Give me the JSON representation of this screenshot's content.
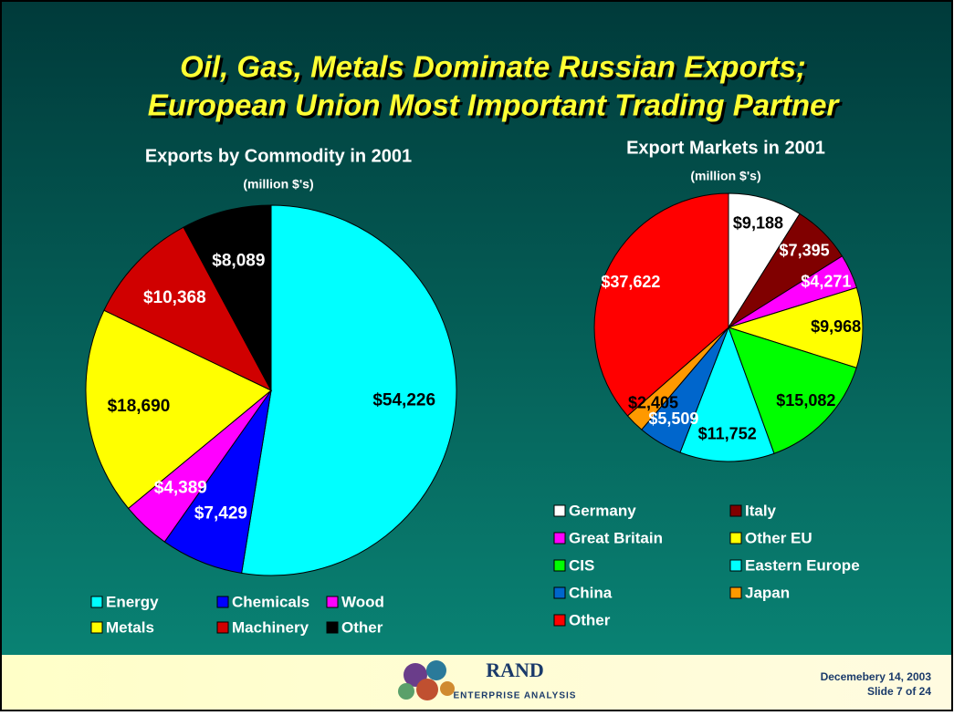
{
  "title": [
    "Oil, Gas, Metals Dominate Russian Exports;",
    "European Union Most Important Trading Partner"
  ],
  "chart_data": [
    {
      "type": "pie",
      "title": "Exports by Commodity in 2001",
      "subtitle": "(million $'s)",
      "categories": [
        "Energy",
        "Chemicals",
        "Wood",
        "Metals",
        "Machinery",
        "Other"
      ],
      "values": [
        54226,
        7429,
        4389,
        18690,
        10368,
        8089
      ],
      "value_labels": [
        "$54,226",
        "$7,429",
        "$4,389",
        "$18,690",
        "$10,368",
        "$8,089"
      ],
      "colors": [
        "#00ffff",
        "#0000ff",
        "#ff00ff",
        "#ffff00",
        "#d00000",
        "#000000"
      ]
    },
    {
      "type": "pie",
      "title": "Export Markets in 2001",
      "subtitle": "(million $'s)",
      "categories": [
        "Germany",
        "Italy",
        "Great Britain",
        "Other EU",
        "CIS",
        "Eastern Europe",
        "China",
        "Japan",
        "Other"
      ],
      "values": [
        9188,
        7395,
        4271,
        9968,
        15082,
        11752,
        5509,
        2405,
        37622
      ],
      "value_labels": [
        "$9,188",
        "$7,395",
        "$4,271",
        "$9,968",
        "$15,082",
        "$11,752",
        "$5,509",
        "$2,405",
        "$37,622"
      ],
      "colors": [
        "#ffffff",
        "#800000",
        "#ff00ff",
        "#ffff00",
        "#00ff00",
        "#00ffff",
        "#0066cc",
        "#ff9900",
        "#ff0000"
      ]
    }
  ],
  "footer": {
    "logo": "RAND",
    "logo_sub": "ENTERPRISE ANALYSIS",
    "date": "Decemebery 14, 2003",
    "slide": "Slide 7 of 24"
  }
}
